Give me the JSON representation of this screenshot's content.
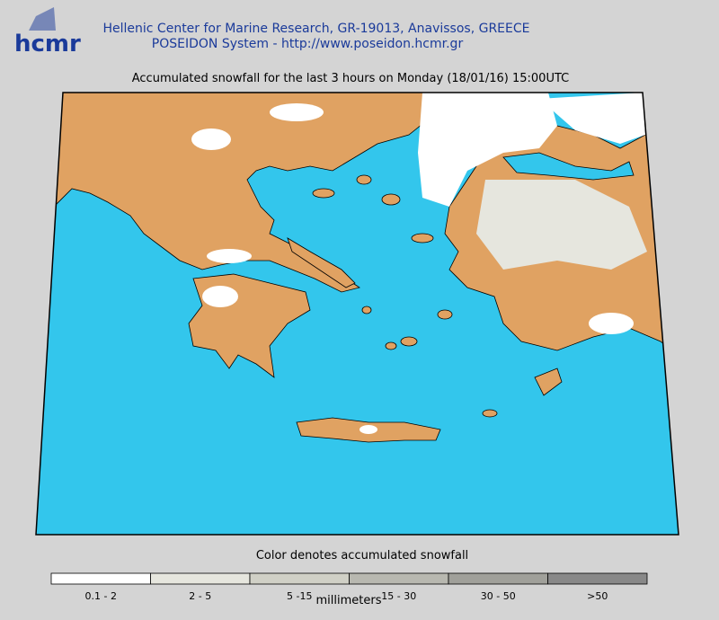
{
  "header": {
    "logo": "hcmr",
    "line1": "Hellenic Center for Marine Research, GR-19013, Anavissos, GREECE",
    "line2": "POSEIDON System - http://www.poseidon.hcmr.gr"
  },
  "map": {
    "title": "Accumulated snowfall for the last 3 hours on Monday (18/01/16) 15:00UTC"
  },
  "legend": {
    "caption": "Color denotes accumulated snowfall",
    "unit": "millimeters",
    "classes": [
      {
        "label": "0.1 - 2",
        "color": "#ffffff"
      },
      {
        "label": "2 - 5",
        "color": "#e6e6de"
      },
      {
        "label": "5 -15",
        "color": "#d0d0c6"
      },
      {
        "label": "15 - 30",
        "color": "#b8b8b0"
      },
      {
        "label": "30 - 50",
        "color": "#a0a09a"
      },
      {
        "label": ">50",
        "color": "#888888"
      }
    ]
  }
}
